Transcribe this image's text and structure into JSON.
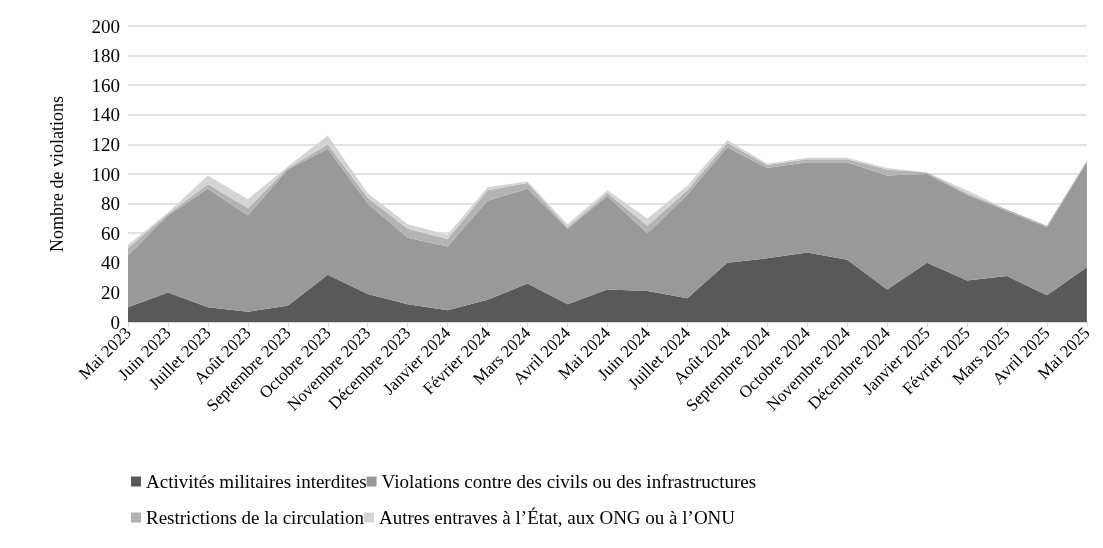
{
  "chart_data": {
    "type": "area",
    "stacked": true,
    "ylabel": "Nombre de violations",
    "categories": [
      "Mai 2023",
      "Juin 2023",
      "Juillet 2023",
      "Août 2023",
      "Septembre 2023",
      "Octobre 2023",
      "Novembre 2023",
      "Décembre 2023",
      "Janvier 2024",
      "Février 2024",
      "Mars 2024",
      "Avril 2024",
      "Mai 2024",
      "Juin 2024",
      "Juillet 2024",
      "Août 2024",
      "Septembre 2024",
      "Octobre 2024",
      "Novembre 2024",
      "Décembre 2024",
      "Janvier 2025",
      "Février 2025",
      "Mars 2025",
      "Avril 2025",
      "Mai 2025"
    ],
    "series": [
      {
        "name": "Activités militaires interdites",
        "color": "#595959",
        "values": [
          10,
          20,
          10,
          7,
          11,
          32,
          19,
          12,
          8,
          15,
          26,
          12,
          22,
          21,
          16,
          40,
          43,
          47,
          42,
          22,
          40,
          28,
          31,
          18,
          37
        ]
      },
      {
        "name": "Violations contre des civils ou des infrastructures",
        "color": "#999999",
        "values": [
          35,
          52,
          80,
          65,
          92,
          85,
          61,
          45,
          43,
          67,
          64,
          51,
          63,
          39,
          70,
          78,
          61,
          61,
          66,
          77,
          60,
          58,
          44,
          46,
          71
        ]
      },
      {
        "name": "Restrictions de la circulation",
        "color": "#b3b3b3",
        "values": [
          5,
          1,
          3,
          5,
          1,
          3,
          4,
          6,
          5,
          7,
          4,
          1,
          2,
          5,
          3,
          3,
          2,
          2,
          2,
          4,
          1,
          1,
          1,
          1,
          1
        ]
      },
      {
        "name": "Autres entraves à l’État, aux ONG ou à l’ONU",
        "color": "#d4d4d4",
        "values": [
          2,
          1,
          6,
          6,
          1,
          6,
          3,
          3,
          3,
          2,
          1,
          2,
          2,
          5,
          3,
          2,
          1,
          1,
          1,
          1,
          0,
          2,
          0,
          0,
          0
        ]
      }
    ],
    "ylim": [
      0,
      200
    ],
    "yticks": [
      0,
      20,
      40,
      60,
      80,
      100,
      120,
      140,
      160,
      180,
      200
    ],
    "grid": "y",
    "legend": "bottom"
  }
}
